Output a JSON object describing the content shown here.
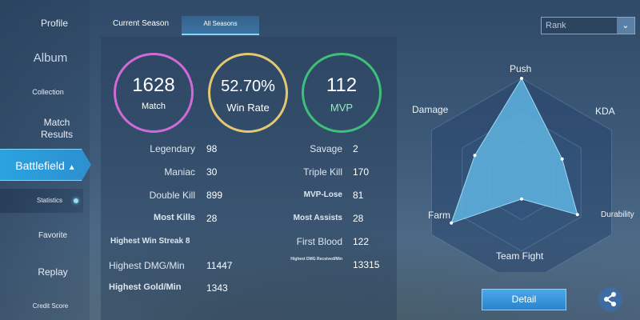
{
  "sidebar": {
    "profile": "Profile",
    "album": "Album",
    "collection": "Collection",
    "match_results_1": "Match",
    "match_results_2": "Results",
    "battlefield": "Battlefield",
    "statistics": "Statistics",
    "favorite": "Favorite",
    "replay": "Replay",
    "credit_score": "Credit Score"
  },
  "tabs": {
    "current": "Current Season",
    "all": "All Seasons"
  },
  "rank_select": {
    "value": "Rank"
  },
  "rings": {
    "match": {
      "value": "1628",
      "label": "Match",
      "color": "#d06ad8"
    },
    "win_rate": {
      "value": "52.70%",
      "label": "Win Rate",
      "color": "#e3c873"
    },
    "mvp": {
      "value": "112",
      "label": "MVP",
      "color": "#3fc07a"
    }
  },
  "stats_left": [
    {
      "label": "Legendary",
      "value": "98"
    },
    {
      "label": "Maniac",
      "value": "30"
    },
    {
      "label": "Double Kill",
      "value": "899"
    },
    {
      "label": "Most Kills",
      "value": "28"
    }
  ],
  "stats_right": [
    {
      "label": "Savage",
      "value": "2"
    },
    {
      "label": "Triple Kill",
      "value": "170"
    },
    {
      "label": "MVP-Lose",
      "value": "81"
    },
    {
      "label": "Most Assists",
      "value": "28"
    },
    {
      "label": "First Blood",
      "value": "122"
    },
    {
      "label": "Highest DMG Received/Min",
      "value": "13315"
    }
  ],
  "stats_bottom": {
    "win_streak": "Highest Win Streak 8",
    "dmg_label": "Highest DMG/Min",
    "dmg_value": "11447",
    "gold_label": "Highest Gold/Min",
    "gold_value": "1343"
  },
  "radar": {
    "axes": [
      "Push",
      "KDA",
      "Durability",
      "Team Fight",
      "Farm",
      "Damage"
    ],
    "values": [
      1.0,
      0.45,
      0.62,
      0.16,
      0.78,
      0.52
    ],
    "fill_color": "#5fb4e0"
  },
  "detail_button": "Detail",
  "icons": {
    "share": "share-icon",
    "chevron": "chevron-up-icon",
    "dropdown": "chevron-down-icon"
  }
}
